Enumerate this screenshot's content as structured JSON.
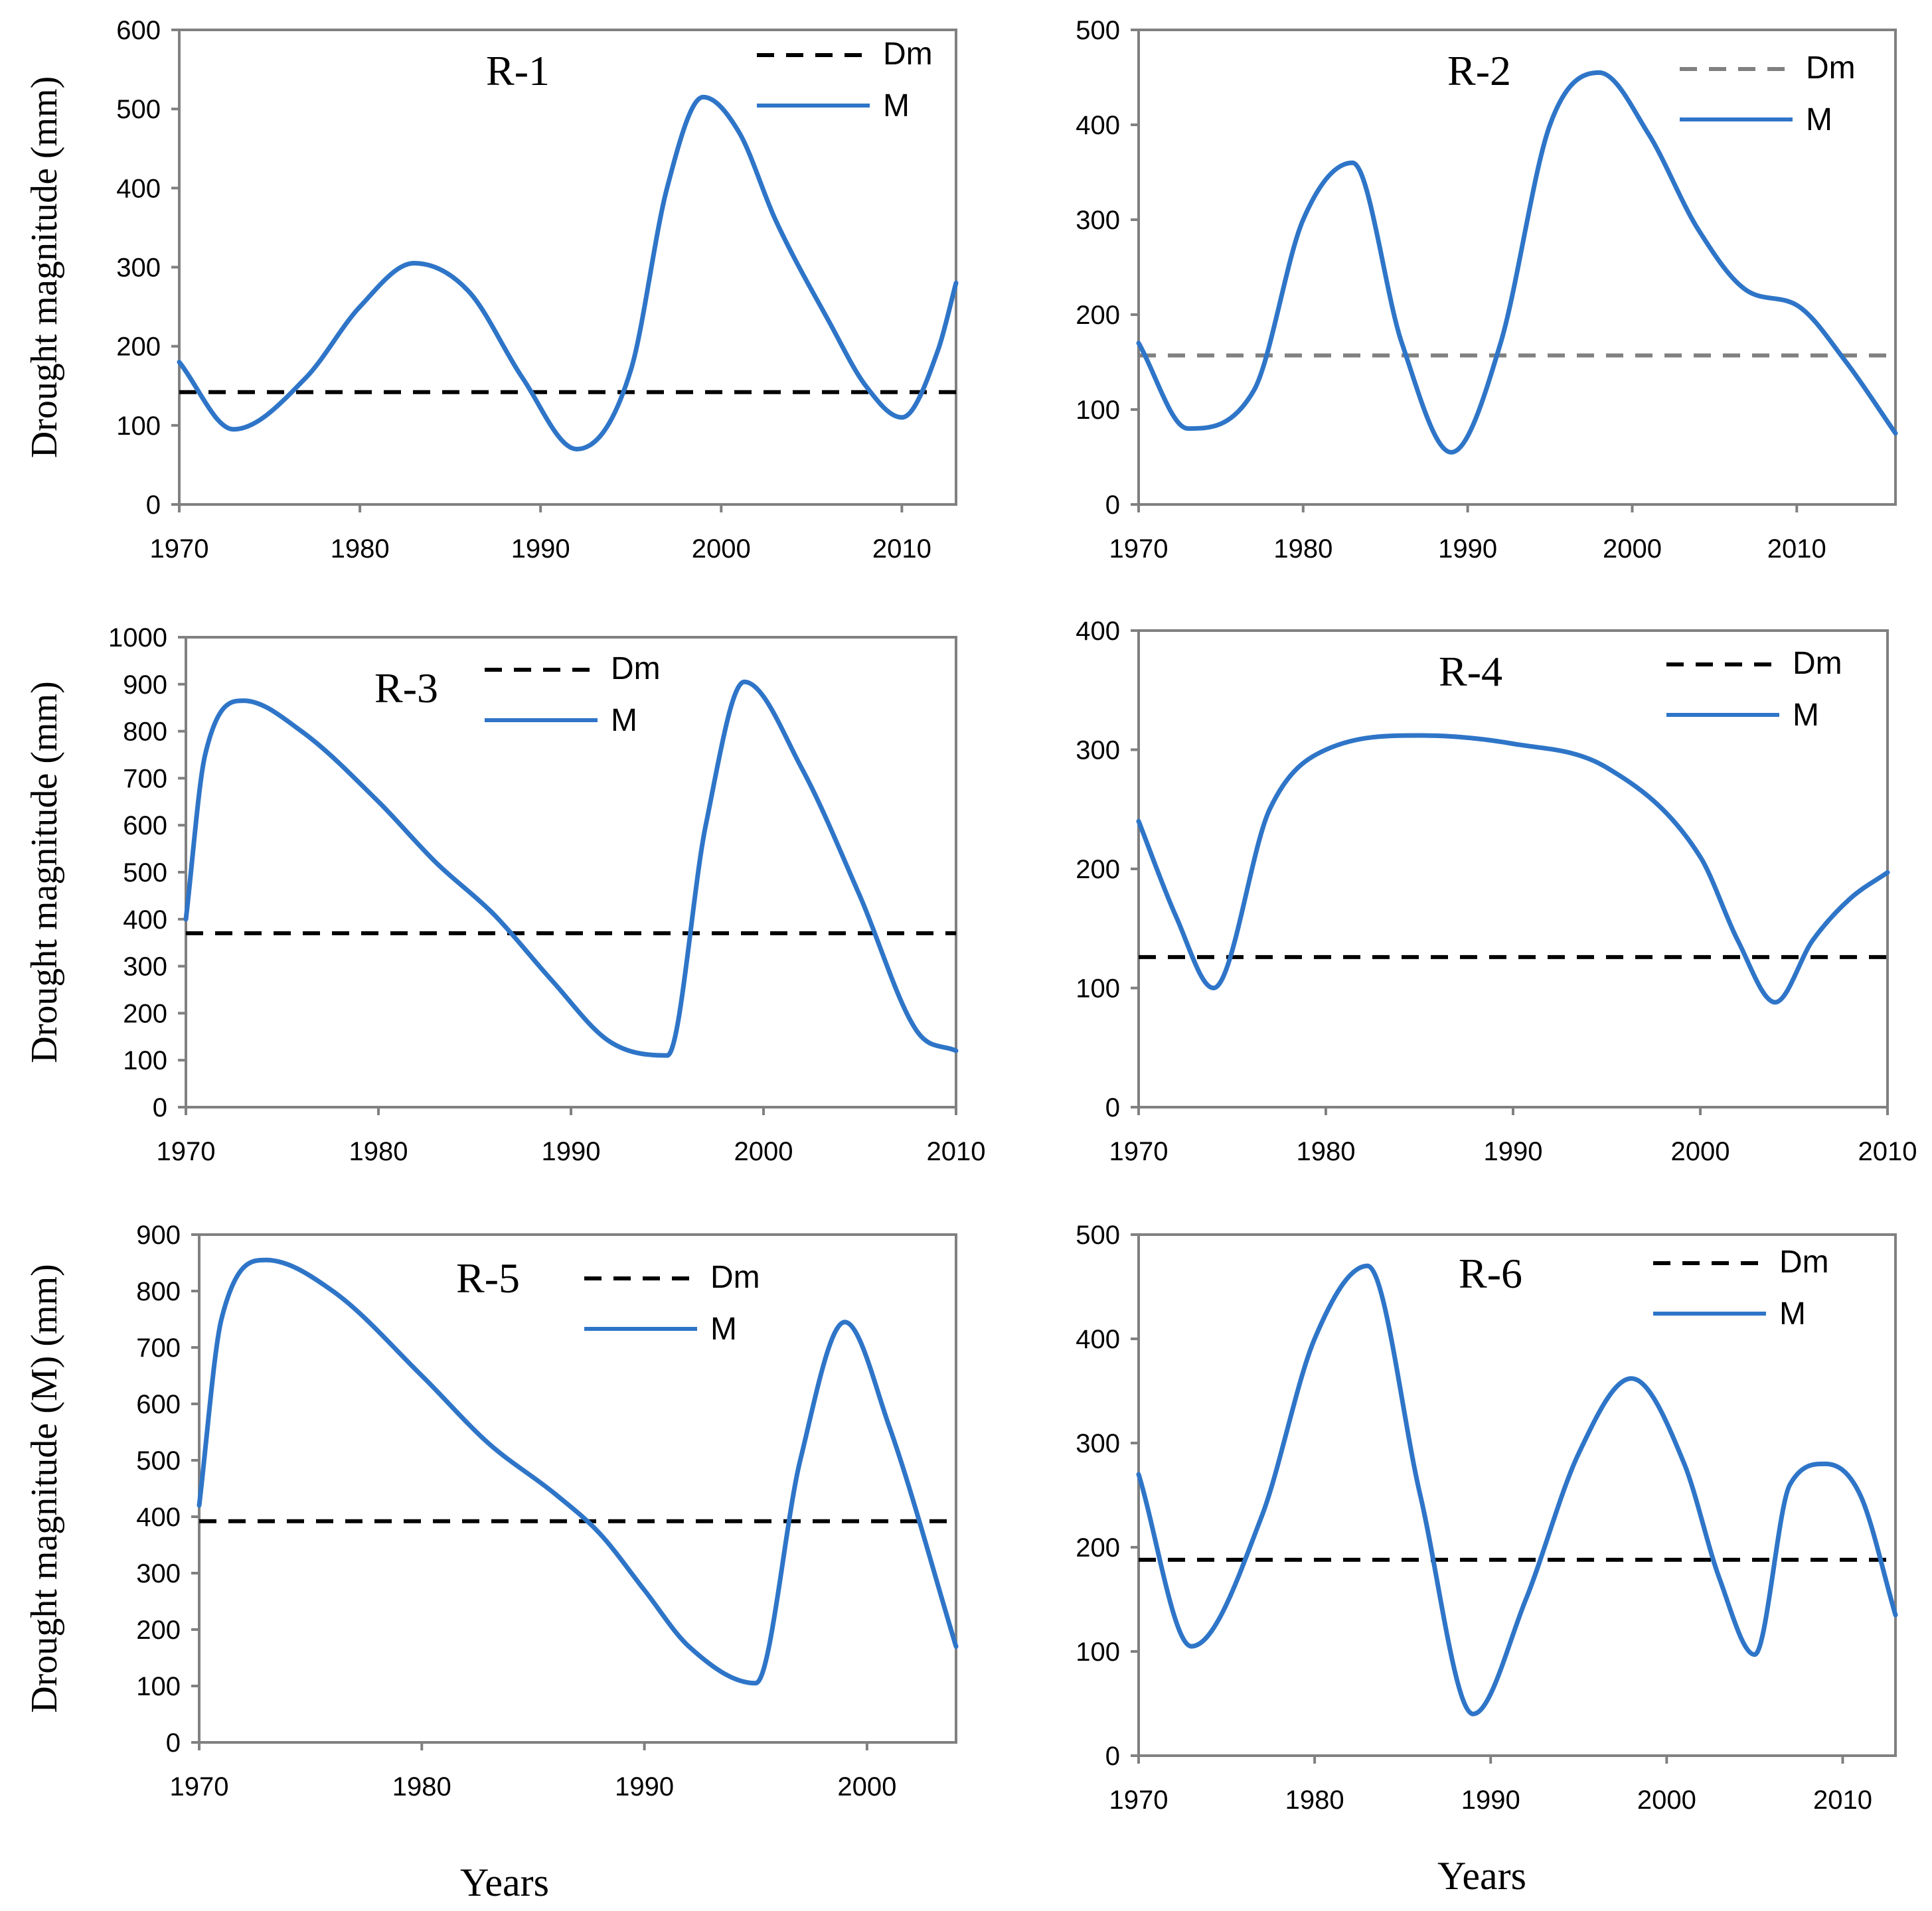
{
  "figure": {
    "x_axis_label": "Years"
  },
  "legend_labels": {
    "dm": "Dm",
    "m": "M"
  },
  "colors": {
    "m_line": "#2e75c8",
    "dm_line_dark": "#000000",
    "dm_line_gray": "#808080"
  },
  "chart_data": [
    {
      "type": "line",
      "title": "R-1",
      "ylabel": "Drought magnitude (mm)",
      "xlabel": "",
      "xlim": [
        1970,
        2013
      ],
      "ylim": [
        0,
        600
      ],
      "xticks": [
        1970,
        1980,
        1990,
        2000,
        2010
      ],
      "yticks": [
        0,
        100,
        200,
        300,
        400,
        500,
        600
      ],
      "dm_style": "dark",
      "series": [
        {
          "name": "Dm",
          "x": [
            1970,
            2013
          ],
          "y": [
            142,
            142
          ]
        },
        {
          "name": "M",
          "x": [
            1970,
            1973,
            1977,
            1980,
            1983,
            1986,
            1989,
            1992,
            1995,
            1997,
            1999,
            2001,
            2003,
            2006,
            2008,
            2010,
            2012,
            2013
          ],
          "y": [
            180,
            95,
            160,
            250,
            305,
            270,
            160,
            70,
            170,
            400,
            515,
            470,
            360,
            230,
            150,
            110,
            195,
            280
          ]
        }
      ]
    },
    {
      "type": "line",
      "title": "R-2",
      "ylabel": "",
      "xlabel": "",
      "xlim": [
        1970,
        2016
      ],
      "ylim": [
        0,
        500
      ],
      "xticks": [
        1970,
        1980,
        1990,
        2000,
        2010
      ],
      "yticks": [
        0,
        100,
        200,
        300,
        400,
        500
      ],
      "dm_style": "gray",
      "series": [
        {
          "name": "Dm",
          "x": [
            1970,
            2016
          ],
          "y": [
            157,
            157
          ]
        },
        {
          "name": "M",
          "x": [
            1970,
            1973,
            1977,
            1980,
            1983,
            1986,
            1989,
            1992,
            1995,
            1998,
            2001,
            2004,
            2007,
            2010,
            2013,
            2016
          ],
          "y": [
            170,
            80,
            120,
            300,
            360,
            170,
            55,
            170,
            400,
            455,
            390,
            290,
            225,
            210,
            150,
            75
          ]
        }
      ]
    },
    {
      "type": "line",
      "title": "R-3",
      "ylabel": "Drought magnitude (mm)",
      "xlabel": "",
      "xlim": [
        1970,
        2010
      ],
      "ylim": [
        0,
        1000
      ],
      "xticks": [
        1970,
        1980,
        1990,
        2000,
        2010
      ],
      "yticks": [
        0,
        100,
        200,
        300,
        400,
        500,
        600,
        700,
        800,
        900,
        1000
      ],
      "dm_style": "dark",
      "series": [
        {
          "name": "Dm",
          "x": [
            1970,
            2010
          ],
          "y": [
            370,
            370
          ]
        },
        {
          "name": "M",
          "x": [
            1970,
            1971,
            1973,
            1976,
            1980,
            1983,
            1986,
            1989,
            1992,
            1995,
            1997,
            1999,
            2002,
            2005,
            2008,
            2010
          ],
          "y": [
            400,
            750,
            865,
            800,
            650,
            520,
            410,
            270,
            140,
            110,
            600,
            905,
            720,
            450,
            160,
            120
          ]
        }
      ]
    },
    {
      "type": "line",
      "title": "R-4",
      "ylabel": "",
      "xlabel": "",
      "xlim": [
        1970,
        2010
      ],
      "ylim": [
        0,
        400
      ],
      "xticks": [
        1970,
        1980,
        1990,
        2000,
        2010
      ],
      "yticks": [
        0,
        100,
        200,
        300,
        400
      ],
      "dm_style": "dark",
      "series": [
        {
          "name": "Dm",
          "x": [
            1970,
            2010
          ],
          "y": [
            126,
            126
          ]
        },
        {
          "name": "M",
          "x": [
            1970,
            1972,
            1974,
            1977,
            1980,
            1985,
            1990,
            1995,
            2000,
            2002,
            2004,
            2006,
            2008,
            2010
          ],
          "y": [
            240,
            160,
            100,
            250,
            300,
            312,
            305,
            285,
            210,
            140,
            88,
            140,
            175,
            197
          ]
        }
      ]
    },
    {
      "type": "line",
      "title": "R-5",
      "ylabel": "Drought magnitude (M) (mm)",
      "xlabel": "Years",
      "xlim": [
        1970,
        2004
      ],
      "ylim": [
        0,
        900
      ],
      "xticks": [
        1970,
        1980,
        1990,
        2000
      ],
      "yticks": [
        0,
        100,
        200,
        300,
        400,
        500,
        600,
        700,
        800,
        900
      ],
      "dm_style": "dark",
      "series": [
        {
          "name": "Dm",
          "x": [
            1970,
            2004
          ],
          "y": [
            392,
            392
          ]
        },
        {
          "name": "M",
          "x": [
            1970,
            1971,
            1973,
            1976,
            1980,
            1983,
            1986,
            1988,
            1990,
            1992,
            1995,
            1997,
            1999,
            2001,
            2004
          ],
          "y": [
            420,
            750,
            855,
            800,
            650,
            530,
            440,
            370,
            270,
            170,
            105,
            500,
            745,
            560,
            170
          ]
        }
      ]
    },
    {
      "type": "line",
      "title": "R-6",
      "ylabel": "",
      "xlabel": "Years",
      "xlim": [
        1970,
        2013
      ],
      "ylim": [
        0,
        500
      ],
      "xticks": [
        1970,
        1980,
        1990,
        2000,
        2010
      ],
      "yticks": [
        0,
        100,
        200,
        300,
        400,
        500
      ],
      "dm_style": "dark",
      "series": [
        {
          "name": "Dm",
          "x": [
            1970,
            2013
          ],
          "y": [
            188,
            188
          ]
        },
        {
          "name": "M",
          "x": [
            1970,
            1973,
            1977,
            1980,
            1983,
            1986,
            1989,
            1992,
            1995,
            1998,
            2001,
            2003,
            2005,
            2007,
            2009,
            2011,
            2013
          ],
          "y": [
            270,
            105,
            230,
            400,
            470,
            250,
            40,
            150,
            290,
            362,
            280,
            170,
            97,
            260,
            280,
            250,
            135
          ]
        }
      ]
    }
  ]
}
